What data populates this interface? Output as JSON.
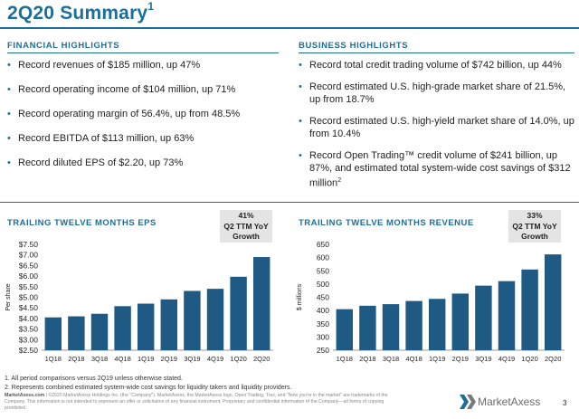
{
  "title": "2Q20 Summary",
  "title_sup": "1",
  "financial": {
    "heading": "FINANCIAL HIGHLIGHTS",
    "items": [
      "Record revenues of $185 million, up 47%",
      "Record operating income of $104 million, up 71%",
      "Record operating margin of 56.4%, up from 48.5%",
      "Record EBITDA of $113 million, up 63%",
      "Record diluted EPS of $2.20, up 73%"
    ]
  },
  "business": {
    "heading": "BUSINESS HIGHLIGHTS",
    "items": [
      "Record total credit trading volume of $742 billion, up 44%",
      "Record estimated U.S. high-grade market share of 21.5%, up from 18.7%",
      "Record estimated U.S. high-yield market share of 14.0%, up from 10.4%",
      "Record Open Trading™ credit volume of $241 billion, up 87%, and estimated total system-wide cost savings of $312 million"
    ],
    "last_item_sup": "2"
  },
  "eps_chart": {
    "heading": "TRAILING TWELVE MONTHS EPS",
    "badge": [
      "41%",
      "Q2 TTM YoY",
      "Growth"
    ]
  },
  "rev_chart": {
    "heading": "TRAILING TWELVE MONTHS REVENUE",
    "badge": [
      "33%",
      "Q2 TTM YoY",
      "Growth"
    ]
  },
  "chart_data": [
    {
      "type": "bar",
      "categories": [
        "1Q18",
        "2Q18",
        "3Q18",
        "4Q18",
        "1Q19",
        "2Q19",
        "3Q19",
        "4Q19",
        "1Q20",
        "2Q20"
      ],
      "values": [
        4.05,
        4.1,
        4.22,
        4.58,
        4.7,
        4.9,
        5.3,
        5.4,
        5.97,
        6.9
      ],
      "ylabel": "Per share",
      "ylim": [
        2.5,
        7.5
      ],
      "yticks": [
        "$2.50",
        "$3.00",
        "$3.50",
        "$4.00",
        "$4.50",
        "$5.00",
        "$5.50",
        "$6.00",
        "$6.50",
        "$7.00",
        "$7.50"
      ],
      "color": "#1f5a84"
    },
    {
      "type": "bar",
      "categories": [
        "1Q18",
        "2Q18",
        "3Q18",
        "4Q18",
        "1Q19",
        "2Q19",
        "3Q19",
        "4Q19",
        "1Q20",
        "2Q20"
      ],
      "values": [
        405,
        418,
        424,
        436,
        444,
        464,
        494,
        511,
        555,
        612
      ],
      "ylabel": "$ millions",
      "ylim": [
        250,
        650
      ],
      "yticks": [
        "250",
        "300",
        "350",
        "400",
        "450",
        "500",
        "550",
        "600",
        "650"
      ],
      "color": "#1f5a84"
    }
  ],
  "footnotes": [
    "1. All period comparisons versus 2Q19 unless otherwise stated.",
    "2. Represents combined estimated system-wide cost savings for liquidity takers and liquidity providers."
  ],
  "legal": {
    "brand": "MarketAxess.com",
    "text": " | ©2020 MarketAxess Holdings Inc. (the \"Company\"). MarketAxess, the MarketAxess logo, Open Trading, Trax, and \"Now you're in the market\" are trademarks of the Company. This information is not intended to represent an offer or solicitation of any financial instrument. Proprietary and confidential information of the Company—all forms of copying prohibited."
  },
  "logo_text": "MarketAxess",
  "page_number": "3"
}
